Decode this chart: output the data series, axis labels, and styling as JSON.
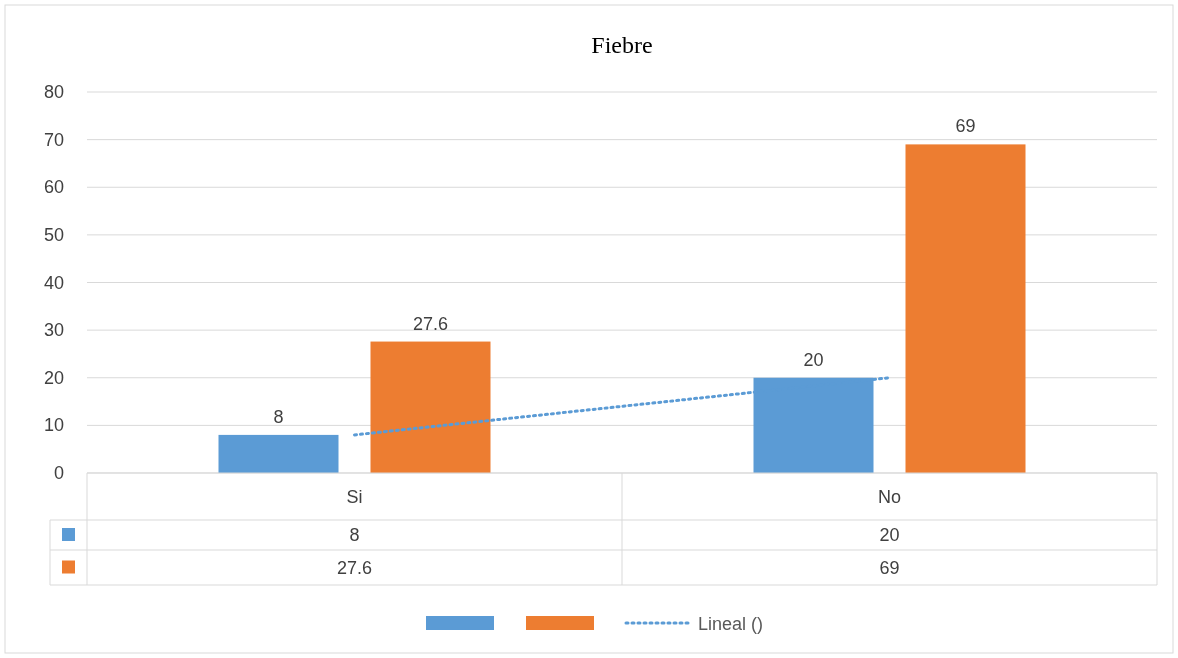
{
  "chart_data": {
    "type": "bar",
    "title": "Fiebre",
    "categories": [
      "Si",
      "No"
    ],
    "series": [
      {
        "color": "#5b9bd5",
        "values": [
          8,
          20
        ],
        "value_labels": [
          "8",
          "20"
        ]
      },
      {
        "color": "#ed7d31",
        "values": [
          27.6,
          69
        ],
        "value_labels": [
          "27.6",
          "69"
        ]
      },
      {
        "type": "line",
        "name": "Lineal ()",
        "color": "#5b9bd5",
        "values": [
          8,
          20
        ],
        "line_style": "dotted"
      }
    ],
    "ylim": [
      0,
      80
    ],
    "yticks": [
      0,
      10,
      20,
      30,
      40,
      50,
      60,
      70,
      80
    ],
    "grid": "y",
    "legend": "bottom"
  }
}
